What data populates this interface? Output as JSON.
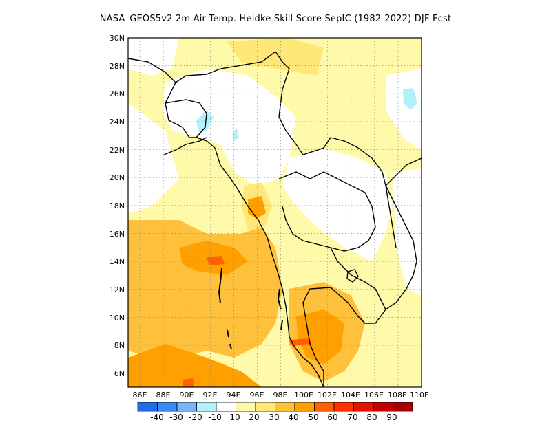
{
  "title": "NASA_GEOS5v2  2m Air Temp. Heidke Skill Score SepIC (1982-2022) DJF Fcst",
  "map": {
    "lat_ticks": [
      "30N",
      "28N",
      "26N",
      "24N",
      "22N",
      "20N",
      "18N",
      "16N",
      "14N",
      "12N",
      "10N",
      "8N",
      "6N"
    ],
    "lon_ticks": [
      "86E",
      "88E",
      "90E",
      "92E",
      "94E",
      "96E",
      "98E",
      "100E",
      "102E",
      "104E",
      "106E",
      "108E",
      "110E"
    ],
    "lon_range": [
      85,
      110
    ],
    "lat_range": [
      5,
      30
    ],
    "grid": "dotted"
  },
  "colorbar": {
    "levels": [
      "-40",
      "-30",
      "-20",
      "-10",
      "10",
      "20",
      "30",
      "40",
      "50",
      "60",
      "70",
      "80",
      "90"
    ],
    "colors": [
      "#1e6ce6",
      "#3c8cf0",
      "#78b4fa",
      "#b4f0fa",
      "#ffffff",
      "#fffaaa",
      "#ffe878",
      "#ffc03c",
      "#ffa000",
      "#ff6000",
      "#ff3200",
      "#e11400",
      "#c00000",
      "#a50000"
    ]
  }
}
